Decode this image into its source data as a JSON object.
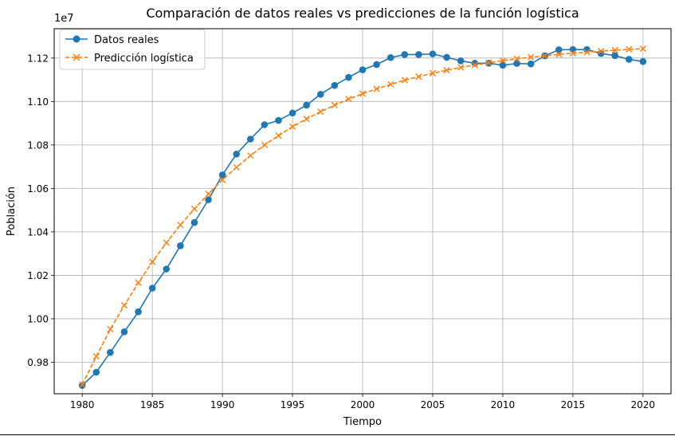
{
  "chart_data": {
    "type": "line",
    "title": "Comparación de datos reales vs predicciones de la función logística",
    "xlabel": "Tiempo",
    "ylabel": "Población",
    "y_offset_label": "1e7",
    "xlim": [
      1978,
      2022
    ],
    "ylim": [
      0.9655,
      1.1335
    ],
    "x_ticks": [
      1980,
      1985,
      1990,
      1995,
      2000,
      2005,
      2010,
      2015,
      2020
    ],
    "y_ticks": [
      0.98,
      1.0,
      1.02,
      1.04,
      1.06,
      1.08,
      1.1,
      1.12
    ],
    "y_tick_labels": [
      "0.98",
      "1.00",
      "1.02",
      "1.04",
      "1.06",
      "1.08",
      "1.10",
      "1.12"
    ],
    "grid": true,
    "legend_position": "top-left",
    "x": [
      1980,
      1981,
      1982,
      1983,
      1984,
      1985,
      1986,
      1987,
      1988,
      1989,
      1990,
      1991,
      1992,
      1993,
      1994,
      1995,
      1996,
      1997,
      1998,
      1999,
      2000,
      2001,
      2002,
      2003,
      2004,
      2005,
      2006,
      2007,
      2008,
      2009,
      2010,
      2011,
      2012,
      2013,
      2014,
      2015,
      2016,
      2017,
      2018,
      2019,
      2020
    ],
    "series": [
      {
        "name": "Datos reales",
        "color": "#1f77b4",
        "marker": "circle",
        "linestyle": "solid",
        "values": [
          0.9693,
          0.9754,
          0.9845,
          0.994,
          1.0032,
          1.0141,
          1.0229,
          1.0336,
          1.0443,
          1.0548,
          1.0662,
          1.0758,
          1.0827,
          1.0893,
          1.0913,
          1.0947,
          1.0983,
          1.1033,
          1.1074,
          1.1111,
          1.1146,
          1.117,
          1.1202,
          1.1216,
          1.1216,
          1.1219,
          1.1203,
          1.1187,
          1.1176,
          1.1176,
          1.1167,
          1.1175,
          1.1173,
          1.121,
          1.1238,
          1.1239,
          1.1239,
          1.1221,
          1.1211,
          1.1194,
          1.1184
        ]
      },
      {
        "name": "Predicción logística",
        "color": "#ff7f0e",
        "marker": "x",
        "linestyle": "dashed",
        "values": [
          0.9697,
          0.9827,
          0.9952,
          1.0062,
          1.0166,
          1.0262,
          1.035,
          1.0432,
          1.0506,
          1.0575,
          1.0639,
          1.0697,
          1.0751,
          1.08,
          1.0843,
          1.0884,
          1.092,
          1.0953,
          1.0983,
          1.1011,
          1.1036,
          1.1058,
          1.1079,
          1.1098,
          1.1114,
          1.113,
          1.1144,
          1.1157,
          1.1168,
          1.1178,
          1.1188,
          1.1196,
          1.1204,
          1.121,
          1.1217,
          1.1222,
          1.1227,
          1.1232,
          1.1236,
          1.124,
          1.1243
        ]
      }
    ]
  }
}
